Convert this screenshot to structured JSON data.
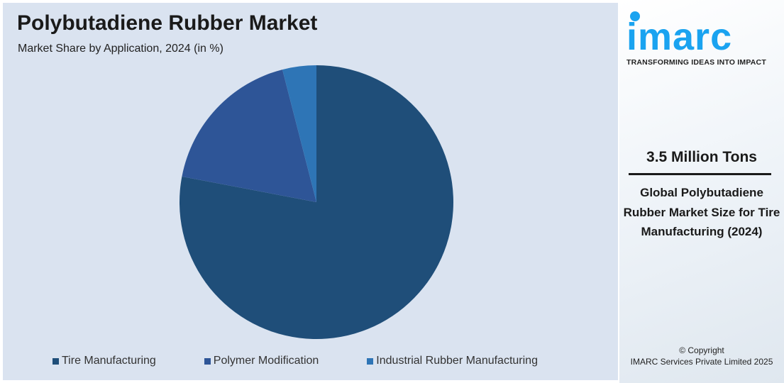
{
  "chart_data": {
    "type": "pie",
    "title": "Polybutadiene Rubber Market",
    "subtitle": "Market Share by Application, 2024 (in %)",
    "categories": [
      "Tire Manufacturing",
      "Polymer Modification",
      "Industrial Rubber Manufacturing"
    ],
    "values": [
      78,
      18,
      4
    ],
    "colors": [
      "#1f4e79",
      "#2e5597",
      "#2e75b6"
    ],
    "start_angle": "top, clockwise",
    "legend_position": "bottom"
  },
  "side_panel": {
    "logo": "imarc",
    "tagline": "TRANSFORMING IDEAS INTO IMPACT",
    "value": "3.5 Million Tons",
    "description": "Global Polybutadiene Rubber Market Size for Tire Manufacturing (2024)",
    "copyright_line1": "© Copyright",
    "copyright_line2": "IMARC Services Private Limited 2025"
  }
}
